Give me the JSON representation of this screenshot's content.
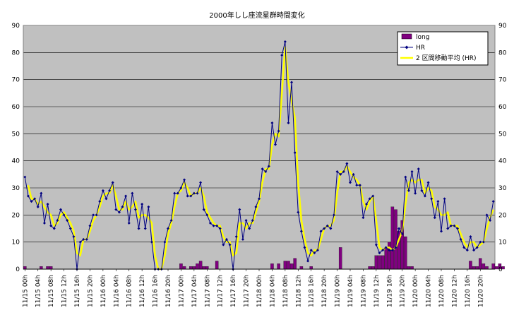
{
  "chart_data": {
    "type": "bar+line",
    "title": "2000年しし座流星群時間変化",
    "xlabel": "",
    "ylabel": "",
    "ylim": [
      0,
      90
    ],
    "y_ticks": [
      0,
      10,
      20,
      30,
      40,
      50,
      60,
      70,
      80,
      90
    ],
    "y2_ticks": [
      0,
      10,
      20,
      30,
      40,
      50,
      60,
      70,
      80,
      90
    ],
    "grid": "horizontal",
    "legend_position": "top-right",
    "x_ticks": [
      "11/15 00h",
      "11/15 04h",
      "11/15 08h",
      "11/15 12h",
      "11/15 16h",
      "11/15 20h",
      "11/16 00h",
      "11/16 04h",
      "11/16 08h",
      "11/16 12h",
      "11/16 16h",
      "11/16 20h",
      "11/17 00h",
      "11/17 04h",
      "11/17 08h",
      "11/17 12h",
      "11/17 16h",
      "11/17 20h",
      "11/18 00h",
      "11/18 04h",
      "11/18 08h",
      "11/18 12h",
      "11/18 16h",
      "11/18 20h",
      "11/19 00h",
      "11/19 04h",
      "11/19 08h",
      "11/19 12h",
      "11/19 16h",
      "11/19 20h",
      "11/20 00h",
      "11/20 04h",
      "11/20 08h",
      "11/20 12h",
      "11/20 16h",
      "11/20 20h"
    ],
    "series": [
      {
        "name": "long",
        "kind": "bar",
        "color": "#800080",
        "values": [
          1,
          0,
          0,
          0,
          0,
          1,
          0,
          1,
          1,
          0,
          0,
          0,
          0,
          0,
          0,
          0,
          0,
          0,
          0,
          0,
          0,
          0,
          0,
          0,
          0,
          0,
          0,
          0,
          0,
          0,
          0,
          0,
          0,
          0,
          0,
          0,
          0,
          0,
          0,
          0,
          0,
          0,
          0,
          0,
          0,
          0,
          0,
          0,
          2,
          1,
          0,
          1,
          1,
          2,
          3,
          1,
          1,
          0,
          0,
          3,
          0,
          0,
          0,
          0,
          0,
          0,
          0,
          0,
          0,
          0,
          0,
          0,
          0,
          0,
          0,
          0,
          2,
          0,
          2,
          0,
          3,
          3,
          2,
          4,
          0,
          1,
          0,
          0,
          1,
          0,
          0,
          0,
          0,
          0,
          0,
          0,
          0,
          8,
          0,
          0,
          0,
          0,
          0,
          0,
          0,
          0,
          1,
          1,
          5,
          5,
          5,
          8,
          10,
          23,
          22,
          14,
          18,
          12,
          1,
          1,
          0,
          0,
          0,
          0,
          0,
          0,
          0,
          0,
          0,
          0,
          0,
          0,
          0,
          0,
          0,
          0,
          0,
          3,
          1,
          1,
          4,
          2,
          1,
          0,
          2,
          1,
          2,
          1,
          0,
          0,
          0,
          0,
          0,
          0,
          0,
          0,
          0,
          3,
          0,
          0,
          0,
          0,
          0,
          0,
          0,
          0,
          0,
          0,
          0,
          2,
          1,
          1,
          2,
          2,
          1,
          1,
          0,
          1,
          0,
          1,
          0,
          0,
          0,
          0,
          0,
          0,
          0,
          0,
          0,
          0,
          0,
          0,
          0,
          0,
          0,
          0
        ]
      },
      {
        "name": "HR",
        "kind": "line",
        "color": "#000080",
        "values": [
          34,
          27,
          25,
          26,
          23,
          28,
          17,
          24,
          16,
          15,
          18,
          22,
          20,
          18,
          15,
          12,
          0,
          10,
          11,
          11,
          16,
          20,
          20,
          25,
          29,
          26,
          29,
          32,
          22,
          21,
          23,
          27,
          17,
          28,
          22,
          15,
          24,
          15,
          23,
          10,
          0,
          0,
          0,
          10,
          15,
          18,
          28,
          28,
          30,
          33,
          27,
          27,
          28,
          28,
          32,
          22,
          20,
          17,
          16,
          16,
          15,
          9,
          11,
          9,
          0,
          12,
          22,
          11,
          18,
          15,
          18,
          23,
          26,
          37,
          36,
          38,
          54,
          46,
          51,
          79,
          84,
          54,
          69,
          43,
          21,
          14,
          8,
          3,
          7,
          6,
          7,
          14,
          15,
          16,
          15,
          20,
          36,
          35,
          36,
          39,
          32,
          35,
          31,
          31,
          19,
          24,
          26,
          27,
          9,
          6,
          7,
          8,
          7,
          7,
          8,
          15,
          13,
          34,
          29,
          36,
          28,
          37,
          29,
          27,
          32,
          26,
          19,
          25,
          14,
          26,
          15,
          16,
          16,
          15,
          11,
          8,
          7,
          12,
          7,
          8,
          10,
          10,
          20,
          18,
          25
        ]
      },
      {
        "name": "2 区間移動平均 (HR)",
        "kind": "line",
        "color": "#ffff00",
        "values": [
          null,
          31,
          26,
          26,
          24,
          25,
          23,
          21,
          20,
          16,
          17,
          20,
          21,
          19,
          17,
          14,
          6,
          5,
          11,
          11,
          14,
          18,
          20,
          23,
          27,
          28,
          28,
          31,
          27,
          22,
          22,
          25,
          22,
          23,
          25,
          19,
          20,
          20,
          19,
          17,
          5,
          0,
          0,
          5,
          13,
          17,
          23,
          28,
          29,
          32,
          30,
          27,
          28,
          28,
          30,
          27,
          21,
          19,
          17,
          16,
          16,
          12,
          10,
          10,
          5,
          6,
          17,
          17,
          15,
          17,
          17,
          21,
          25,
          32,
          37,
          37,
          46,
          50,
          49,
          65,
          82,
          69,
          62,
          56,
          32,
          18,
          11,
          6,
          5,
          7,
          7,
          11,
          15,
          16,
          16,
          18,
          28,
          36,
          36,
          38,
          36,
          34,
          33,
          31,
          25,
          22,
          25,
          27,
          18,
          8,
          7,
          8,
          8,
          7,
          8,
          11,
          14,
          24,
          32,
          33,
          32,
          33,
          33,
          28,
          30,
          29,
          23,
          22,
          20,
          20,
          21,
          16,
          16,
          16,
          13,
          10,
          8,
          10,
          10,
          8,
          9,
          10,
          15,
          19,
          22
        ]
      }
    ]
  }
}
